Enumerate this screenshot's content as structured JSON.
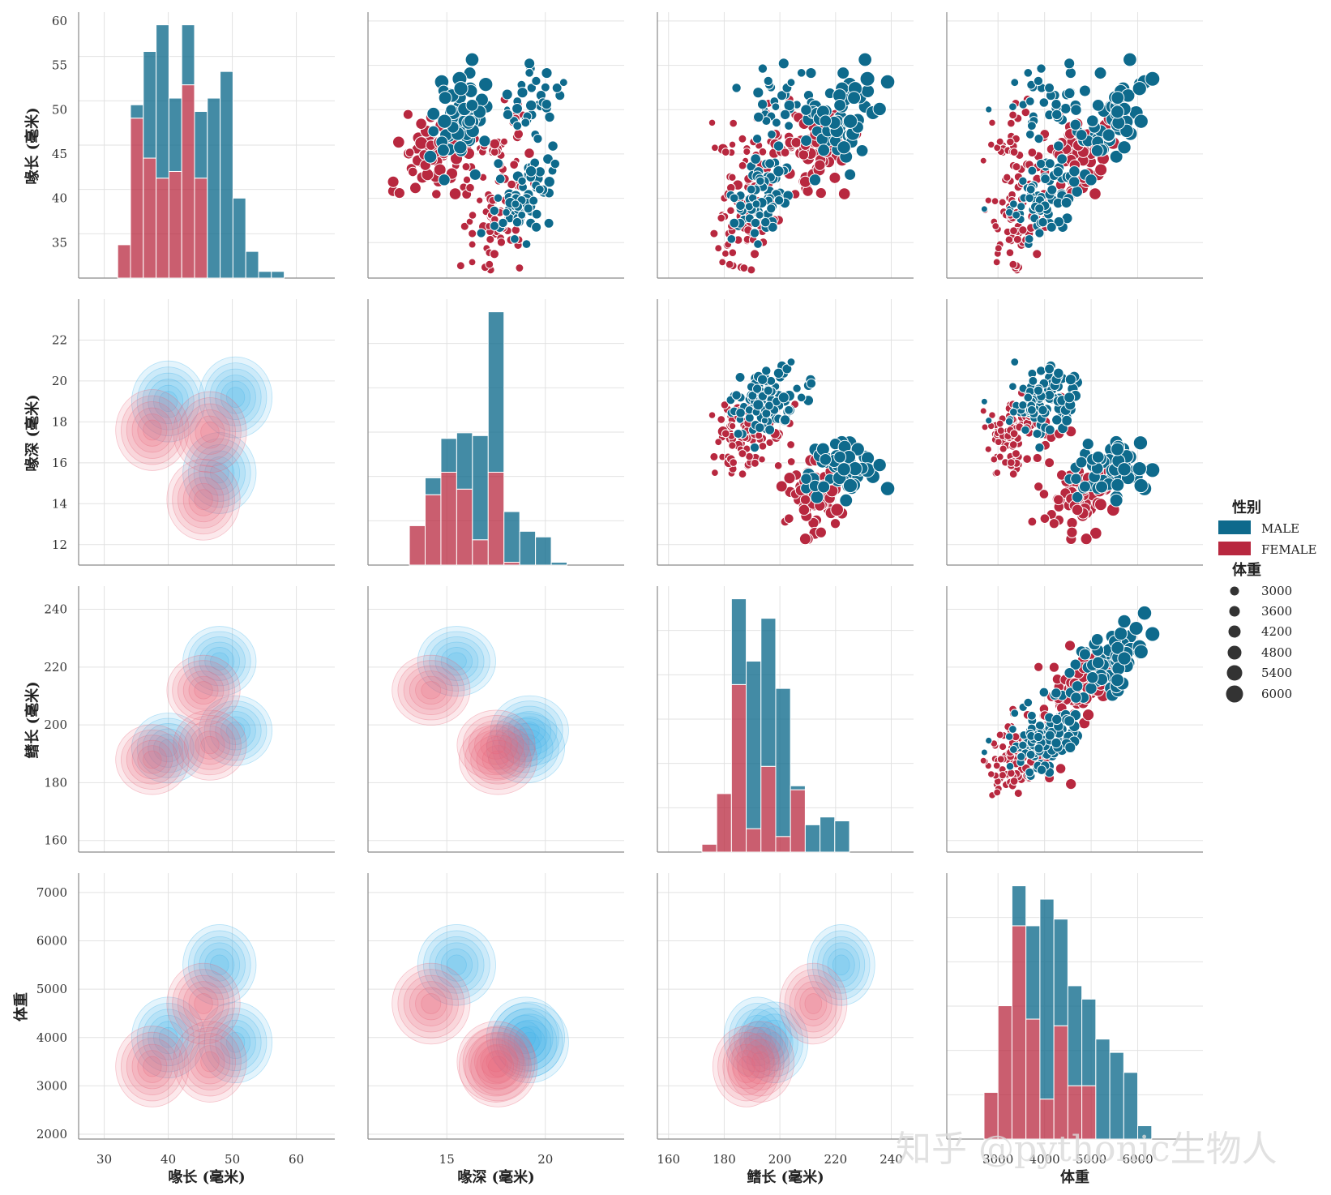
{
  "colors": {
    "male": "#0e6a8c",
    "female": "#b8283f",
    "male_kde": "#42b4ea",
    "female_kde": "#e8667a",
    "grid": "#e2e2e2",
    "axis": "#8a8a8a"
  },
  "chart_data": {
    "type": "pairplot",
    "variables": [
      {
        "key": "bill_length",
        "label": "喙长 (毫米)",
        "range": [
          26,
          66
        ],
        "ticks": [
          30,
          40,
          50,
          60
        ],
        "y_ticks": [
          35,
          40,
          45,
          50,
          55,
          60
        ],
        "x_ticks": [
          30,
          40,
          50,
          60
        ]
      },
      {
        "key": "bill_depth",
        "label": "喙深 (毫米)",
        "range": [
          11,
          24
        ],
        "ticks": [
          15,
          20
        ],
        "y_ticks": [
          12,
          14,
          16,
          18,
          20,
          22
        ],
        "x_ticks": [
          15,
          20
        ]
      },
      {
        "key": "flipper_length",
        "label": "鳍长 (毫米)",
        "range": [
          156,
          248
        ],
        "ticks": [
          160,
          180,
          200,
          220,
          240
        ],
        "y_ticks": [
          160,
          180,
          200,
          220,
          240
        ],
        "x_ticks": [
          160,
          180,
          200,
          220,
          240
        ]
      },
      {
        "key": "body_mass",
        "label": "体重",
        "range": [
          1900,
          7400
        ],
        "ticks": [
          2000,
          3000,
          4000,
          5000,
          6000,
          7000
        ],
        "y_ticks": [
          2000,
          3000,
          4000,
          5000,
          6000,
          7000
        ],
        "x_ticks": [
          3000,
          4000,
          5000,
          6000
        ]
      }
    ],
    "y_ranges": [
      [
        31,
        61
      ],
      [
        11,
        24
      ],
      [
        156,
        248
      ],
      [
        1900,
        7400
      ]
    ],
    "hue": {
      "title": "性别",
      "levels": [
        "MALE",
        "FEMALE"
      ]
    },
    "size": {
      "title": "体重",
      "levels": [
        3000,
        3600,
        4200,
        4800,
        5400,
        6000
      ]
    },
    "diagonal": "stacked histogram",
    "lower": "kde (filled contours)",
    "upper": "scatter",
    "histograms": [
      {
        "var": "bill_length",
        "bins": [
          32.1,
          34.1,
          36.1,
          38.1,
          40.1,
          42.1,
          44.1,
          46.1,
          48.1,
          50.1,
          52.1,
          54.1,
          56.1,
          58.1
        ],
        "female": [
          5,
          24,
          18,
          15,
          16,
          29,
          15,
          0,
          0,
          0,
          0,
          0,
          0
        ],
        "male": [
          0,
          2,
          16,
          23,
          11,
          9,
          10,
          27,
          31,
          12,
          4,
          1,
          1
        ]
      },
      {
        "var": "bill_depth",
        "bins": [
          13.1,
          13.9,
          14.7,
          15.5,
          16.3,
          17.1,
          17.9,
          18.7,
          19.5,
          20.3,
          21.1
        ],
        "female": [
          14,
          25,
          33,
          27,
          9,
          33,
          1,
          0,
          0,
          0
        ],
        "male": [
          0,
          6,
          12,
          20,
          37,
          57,
          18,
          12,
          10,
          1
        ]
      },
      {
        "var": "flipper_length",
        "bins": [
          172,
          177.3,
          182.6,
          187.9,
          193.2,
          198.5,
          203.8,
          209.1,
          214.4,
          219.7,
          225
        ],
        "female": [
          2,
          15,
          43,
          6,
          22,
          4,
          16,
          0,
          0,
          0
        ],
        "male": [
          0,
          0,
          22,
          43,
          38,
          38,
          1,
          7,
          9,
          8
        ]
      },
      {
        "var": "body_mass",
        "bins": [
          2700,
          3000,
          3300,
          3600,
          3900,
          4200,
          4500,
          4800,
          5100,
          5400,
          5700,
          6000,
          6300
        ],
        "female": [
          7,
          20,
          32,
          18,
          6,
          17,
          8,
          8,
          0,
          0,
          0,
          0
        ],
        "male": [
          0,
          0,
          6,
          14,
          30,
          16,
          15,
          13,
          15,
          13,
          10,
          2
        ]
      }
    ],
    "kde_peaks": {
      "male": [
        {
          "bill_length": 40,
          "bill_depth": 19,
          "flipper_length": 192,
          "body_mass": 4000
        },
        {
          "bill_length": 50.5,
          "bill_depth": 19.2,
          "flipper_length": 198,
          "body_mass": 3900
        },
        {
          "bill_length": 48,
          "bill_depth": 15.5,
          "flipper_length": 222,
          "body_mass": 5500
        }
      ],
      "female": [
        {
          "bill_length": 37.5,
          "bill_depth": 17.6,
          "flipper_length": 188,
          "body_mass": 3400
        },
        {
          "bill_length": 46.5,
          "bill_depth": 17.5,
          "flipper_length": 193,
          "body_mass": 3500
        },
        {
          "bill_length": 45.5,
          "bill_depth": 14.2,
          "flipper_length": 212,
          "body_mass": 4700
        }
      ]
    },
    "scatter_clusters": {
      "male": [
        {
          "bill_length": 40,
          "bill_depth": 18.9,
          "flipper_length": 193,
          "body_mass": 4000,
          "n": 70
        },
        {
          "bill_length": 51,
          "bill_depth": 19.3,
          "flipper_length": 200,
          "body_mass": 3950,
          "n": 35
        },
        {
          "bill_length": 49,
          "bill_depth": 15.8,
          "flipper_length": 222,
          "body_mass": 5450,
          "n": 60
        }
      ],
      "female": [
        {
          "bill_length": 37.3,
          "bill_depth": 17.5,
          "flipper_length": 187,
          "body_mass": 3350,
          "n": 70
        },
        {
          "bill_length": 46.5,
          "bill_depth": 17.5,
          "flipper_length": 192,
          "body_mass": 3500,
          "n": 35
        },
        {
          "bill_length": 45.5,
          "bill_depth": 14.2,
          "flipper_length": 212,
          "body_mass": 4650,
          "n": 60
        }
      ]
    },
    "watermark": "知乎 @pythonic生物人"
  }
}
